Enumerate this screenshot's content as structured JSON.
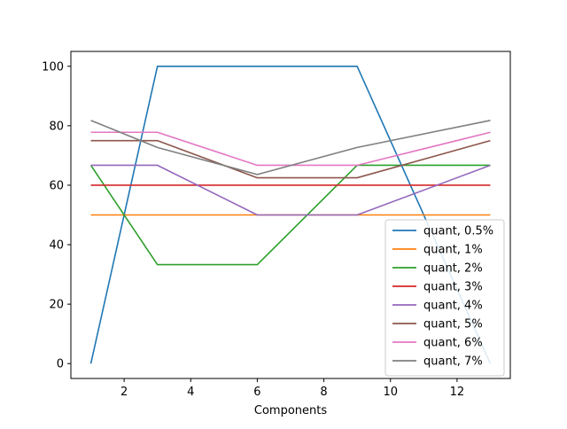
{
  "chart_data": {
    "type": "line",
    "xlabel": "Components",
    "ylabel": "",
    "title": "",
    "x": [
      1,
      3,
      6,
      9,
      13
    ],
    "xlim": [
      0.4,
      13.6
    ],
    "ylim": [
      -5,
      105
    ],
    "xticks": [
      2,
      4,
      6,
      8,
      10,
      12
    ],
    "yticks": [
      0,
      20,
      40,
      60,
      80,
      100
    ],
    "grid": false,
    "legend_placement": "lower-right",
    "series": [
      {
        "name": "quant, 0.5%",
        "color": "#1f77b4",
        "values": [
          0,
          100,
          100,
          100,
          0
        ]
      },
      {
        "name": "quant, 1%",
        "color": "#ff7f0e",
        "values": [
          50,
          50,
          50,
          50,
          50
        ]
      },
      {
        "name": "quant, 2%",
        "color": "#2ca02c",
        "values": [
          66.7,
          33.3,
          33.3,
          66.7,
          66.7
        ]
      },
      {
        "name": "quant, 3%",
        "color": "#d62728",
        "values": [
          60,
          60,
          60,
          60,
          60
        ]
      },
      {
        "name": "quant, 4%",
        "color": "#9467bd",
        "values": [
          66.7,
          66.7,
          50,
          50,
          66.7
        ]
      },
      {
        "name": "quant, 5%",
        "color": "#8c564b",
        "values": [
          75,
          75,
          62.5,
          62.5,
          75
        ]
      },
      {
        "name": "quant, 6%",
        "color": "#e377c2",
        "values": [
          77.8,
          77.8,
          66.7,
          66.7,
          77.8
        ]
      },
      {
        "name": "quant, 7%",
        "color": "#7f7f7f",
        "values": [
          81.8,
          72.7,
          63.6,
          72.7,
          81.8
        ]
      }
    ]
  }
}
